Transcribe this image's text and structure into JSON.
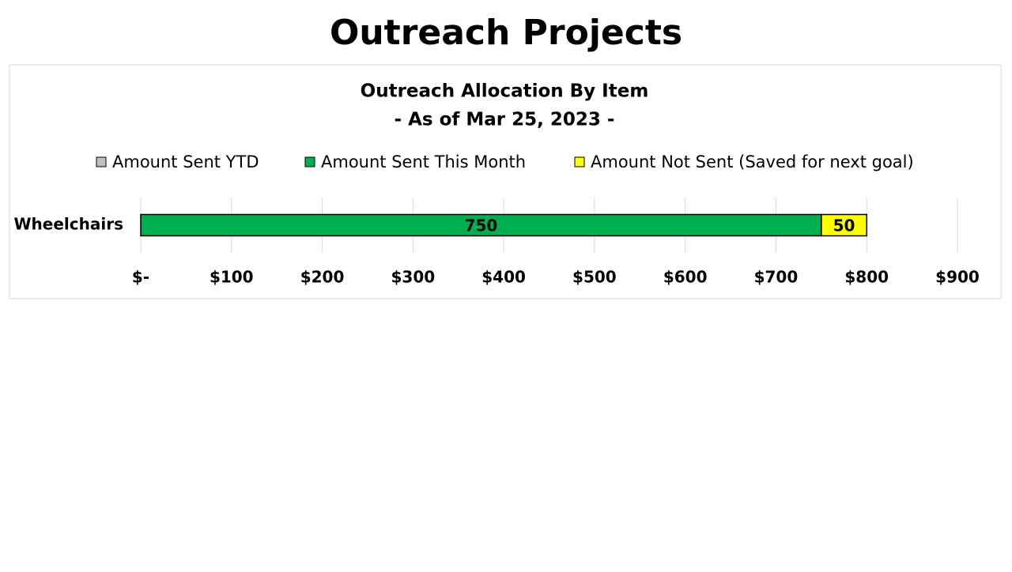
{
  "slide": {
    "title": "Outreach Projects"
  },
  "chart_data": {
    "type": "stacked-barh",
    "title": "Outreach Allocation By Item",
    "subtitle": "- As of Mar 25, 2023 -",
    "categories": [
      "Wheelchairs"
    ],
    "series": [
      {
        "name": "Amount Sent YTD",
        "color": "#bfbfbf",
        "values": [
          0
        ]
      },
      {
        "name": "Amount Sent This Month",
        "color": "#00b050",
        "values": [
          750
        ]
      },
      {
        "name": "Amount Not Sent (Saved for next goal)",
        "color": "#ffff00",
        "values": [
          50
        ]
      }
    ],
    "xlim": [
      0,
      900
    ],
    "xticks": [
      {
        "value": 0,
        "label": "$-"
      },
      {
        "value": 100,
        "label": "$100"
      },
      {
        "value": 200,
        "label": "$200"
      },
      {
        "value": 300,
        "label": "$300"
      },
      {
        "value": 400,
        "label": "$400"
      },
      {
        "value": 500,
        "label": "$500"
      },
      {
        "value": 600,
        "label": "$600"
      },
      {
        "value": 700,
        "label": "$700"
      },
      {
        "value": 800,
        "label": "$800"
      },
      {
        "value": 900,
        "label": "$900"
      }
    ],
    "grid": true,
    "legend": "top"
  }
}
